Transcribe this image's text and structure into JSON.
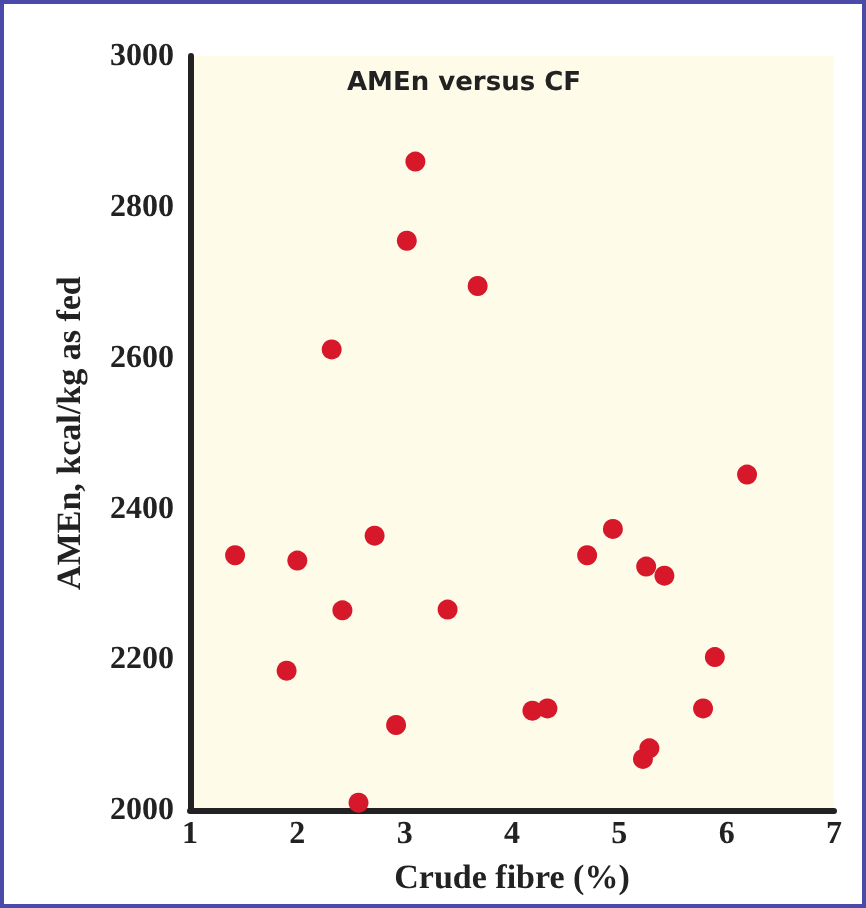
{
  "chart_data": {
    "type": "scatter",
    "title": "AMEn versus CF",
    "xlabel": "Crude fibre (%)",
    "ylabel": "AMEn, kcal/kg as fed",
    "x": [
      1.42,
      2.0,
      2.72,
      2.42,
      3.4,
      1.9,
      2.92,
      2.57,
      2.32,
      3.02,
      3.1,
      3.68,
      6.19,
      4.94,
      4.7,
      5.25,
      5.42,
      5.89,
      4.19,
      4.33,
      5.78,
      5.28,
      5.22
    ],
    "series": [
      {
        "color": "#d7182a",
        "values": [
          2338,
          2331,
          2364,
          2265,
          2266,
          2185,
          2113,
          2010,
          2611,
          2755,
          2860,
          2695,
          2445,
          2373,
          2338,
          2323,
          2311,
          2203,
          2132,
          2135,
          2135,
          2082,
          2068
        ]
      }
    ],
    "xlim": [
      1,
      7
    ],
    "xticks": [
      1,
      2,
      3,
      4,
      5,
      6,
      7
    ],
    "ylim": [
      2000,
      3000
    ],
    "yticks": [
      2000,
      2200,
      2400,
      2600,
      2800,
      3000
    ],
    "grid": false,
    "marker": "circle"
  }
}
